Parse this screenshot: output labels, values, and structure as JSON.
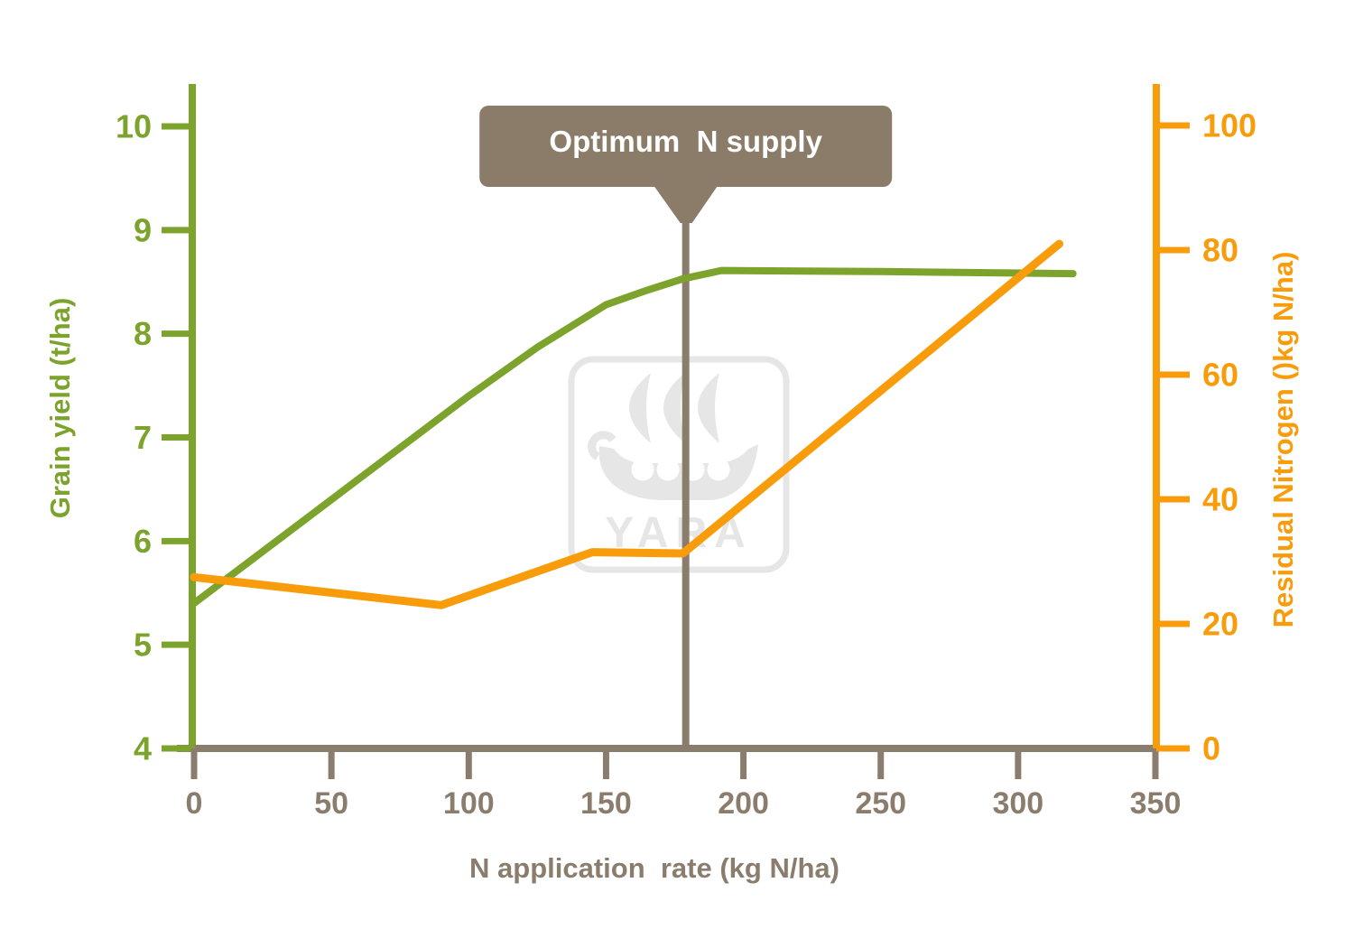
{
  "watermark": {
    "text": "YARA"
  },
  "chart_data": {
    "type": "line",
    "title": "",
    "x_axis": {
      "label": "N application  rate (kg N/ha)",
      "ticks": [
        0,
        50,
        100,
        150,
        200,
        250,
        300,
        350
      ],
      "range": [
        0,
        350
      ],
      "color": "#8b7d6e"
    },
    "y_left_axis": {
      "label": "Grain yield (t/ha)",
      "ticks": [
        4,
        5,
        6,
        7,
        8,
        9,
        10
      ],
      "range": [
        4,
        10.4
      ],
      "color": "#7ca32b"
    },
    "y_right_axis": {
      "label": "Residual Nitrogen ()kg N/ha)",
      "ticks": [
        0,
        20,
        40,
        60,
        80,
        100
      ],
      "range": [
        0,
        107
      ],
      "color": "#f89c0c"
    },
    "annotation": {
      "label": "Optimum  N supply",
      "x_value": 179,
      "box_color": "#8b7c6a",
      "line_color": "#8b7d6e",
      "text_color": "#ffffff"
    },
    "grid": false,
    "legend": false,
    "series": [
      {
        "name": "Grain yield",
        "axis": "left",
        "color": "#7ca32b",
        "points": [
          [
            0,
            5.4
          ],
          [
            50,
            6.4
          ],
          [
            100,
            7.4
          ],
          [
            125,
            7.87
          ],
          [
            150,
            8.28
          ],
          [
            165,
            8.42
          ],
          [
            178,
            8.53
          ],
          [
            192,
            8.61
          ],
          [
            250,
            8.6
          ],
          [
            320,
            8.58
          ]
        ]
      },
      {
        "name": "Residual Nitrogen",
        "axis": "right",
        "color": "#f89c0c",
        "points": [
          [
            0,
            27.5
          ],
          [
            90,
            23
          ],
          [
            145,
            31.5
          ],
          [
            178,
            31.3
          ],
          [
            315,
            81
          ]
        ]
      }
    ]
  }
}
